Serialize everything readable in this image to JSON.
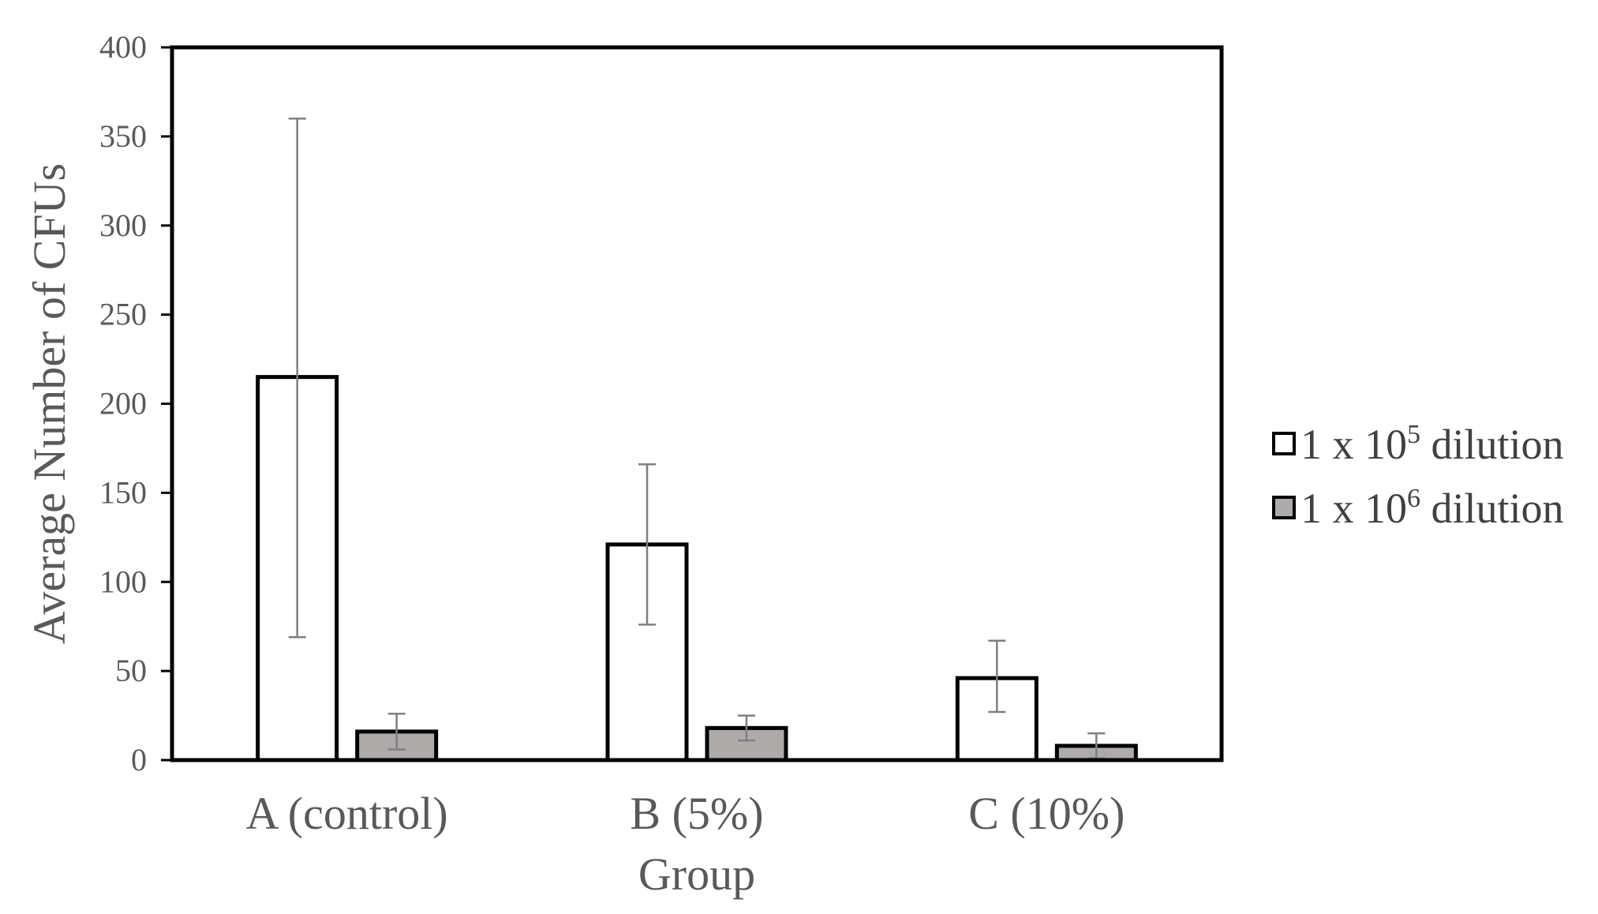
{
  "chart_data": {
    "type": "bar",
    "title": "",
    "xlabel": "Group",
    "ylabel": "Average Number of CFUs",
    "ylim": [
      0,
      400
    ],
    "yticks": [
      0,
      50,
      100,
      150,
      200,
      250,
      300,
      350,
      400
    ],
    "categories": [
      "A (control)",
      "B (5%)",
      "C (10%)"
    ],
    "grid": false,
    "legend_position": "right",
    "series": [
      {
        "name": "1 x 10⁵ dilution",
        "name_parts": {
          "base": "1 x 10",
          "sup": "5",
          "rest": " dilution"
        },
        "color": "#ffffff",
        "values": [
          215,
          121,
          46
        ],
        "error_low": [
          69,
          76,
          27
        ],
        "error_high": [
          360,
          166,
          67
        ]
      },
      {
        "name": "1 x 10⁶ dilution",
        "name_parts": {
          "base": "1 x 10",
          "sup": "6",
          "rest": " dilution"
        },
        "color": "#aeaaaa",
        "values": [
          16,
          18,
          8
        ],
        "error_low": [
          6,
          11,
          1
        ],
        "error_high": [
          26,
          25,
          15
        ]
      }
    ]
  }
}
